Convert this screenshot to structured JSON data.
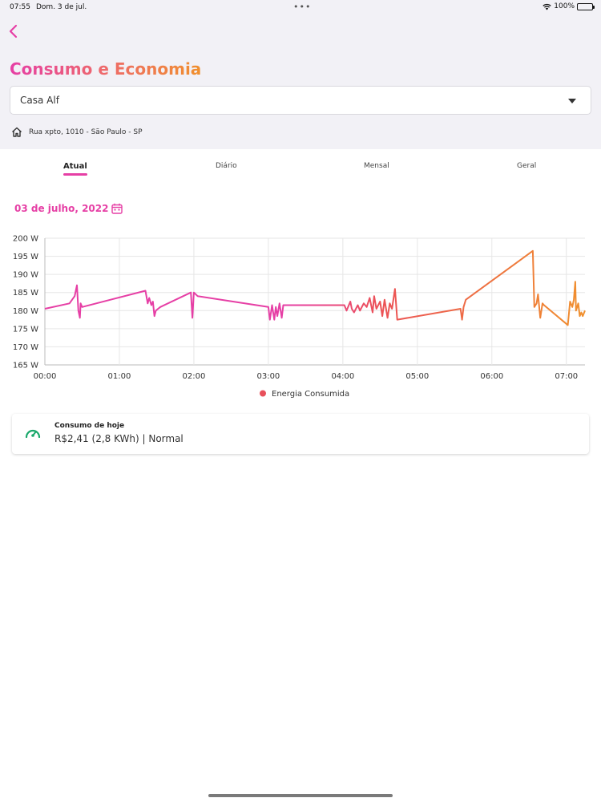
{
  "status_bar": {
    "time": "07:55",
    "date": "Dom. 3 de jul.",
    "battery": "100%",
    "dots": "•••"
  },
  "header": {
    "title": "Consumo e Economia",
    "location_select": {
      "value": "Casa Alf"
    },
    "address": "Rua xpto, 1010 - São Paulo - SP"
  },
  "tabs": [
    {
      "label": "Atual",
      "active": true
    },
    {
      "label": "Diário",
      "active": false
    },
    {
      "label": "Mensal",
      "active": false
    },
    {
      "label": "Geral",
      "active": false
    }
  ],
  "date_selector": {
    "label": "03 de julho, 2022"
  },
  "colors": {
    "accent_pink": "#e63fa5",
    "accent_orange": "#f0902e",
    "gauge_green": "#1aa86b",
    "legend_dot": "#e8505b"
  },
  "chart_data": {
    "type": "line",
    "xlabel": "",
    "ylabel": "",
    "ylim": [
      165,
      200
    ],
    "xlim": [
      0,
      7.25
    ],
    "y_ticks": [
      "165 W",
      "170 W",
      "175 W",
      "180 W",
      "185 W",
      "190 W",
      "195 W",
      "200 W"
    ],
    "x_ticks": [
      "00:00",
      "01:00",
      "02:00",
      "03:00",
      "04:00",
      "05:00",
      "06:00",
      "07:00"
    ],
    "grid": true,
    "legend_position": "bottom-center",
    "series": [
      {
        "name": "Energia Consumida",
        "x": [
          0.0,
          0.33,
          0.4,
          0.43,
          0.45,
          0.47,
          0.48,
          0.5,
          1.35,
          1.38,
          1.4,
          1.43,
          1.45,
          1.47,
          1.49,
          1.52,
          1.55,
          1.96,
          1.98,
          2.0,
          2.05,
          3.0,
          3.02,
          3.05,
          3.08,
          3.1,
          3.12,
          3.15,
          3.18,
          3.2,
          3.22,
          4.02,
          4.05,
          4.1,
          4.12,
          4.15,
          4.2,
          4.23,
          4.28,
          4.32,
          4.36,
          4.4,
          4.42,
          4.45,
          4.5,
          4.53,
          4.56,
          4.6,
          4.63,
          4.66,
          4.7,
          4.73,
          5.58,
          5.6,
          5.62,
          5.65,
          6.55,
          6.57,
          6.6,
          6.62,
          6.65,
          6.68,
          6.7,
          7.02,
          7.05,
          7.08,
          7.1,
          7.12,
          7.13,
          7.16,
          7.18,
          7.2,
          7.22,
          7.25
        ],
        "values": [
          180.5,
          182.0,
          184.0,
          187.0,
          180.0,
          178.0,
          182.0,
          181.0,
          185.5,
          182.0,
          183.5,
          181.5,
          182.5,
          178.5,
          180.0,
          180.5,
          181.0,
          185.0,
          178.0,
          185.0,
          184.0,
          181.0,
          177.5,
          181.5,
          177.5,
          181.0,
          178.5,
          182.0,
          178.0,
          181.5,
          181.5,
          181.5,
          180.0,
          182.5,
          180.5,
          179.5,
          181.5,
          180.0,
          182.0,
          181.0,
          183.5,
          179.5,
          184.0,
          180.5,
          182.5,
          178.5,
          183.0,
          178.0,
          182.0,
          180.5,
          186.0,
          177.5,
          180.5,
          177.5,
          181.0,
          183.0,
          196.5,
          181.0,
          182.0,
          184.5,
          178.0,
          182.0,
          181.5,
          176.0,
          182.5,
          181.0,
          183.0,
          188.0,
          180.0,
          182.0,
          178.5,
          179.5,
          178.5,
          180.0
        ]
      }
    ]
  },
  "summary_card": {
    "title": "Consumo de hoje",
    "value": "R$2,41 (2,8 KWh) | Normal",
    "icon": "gauge-icon"
  }
}
